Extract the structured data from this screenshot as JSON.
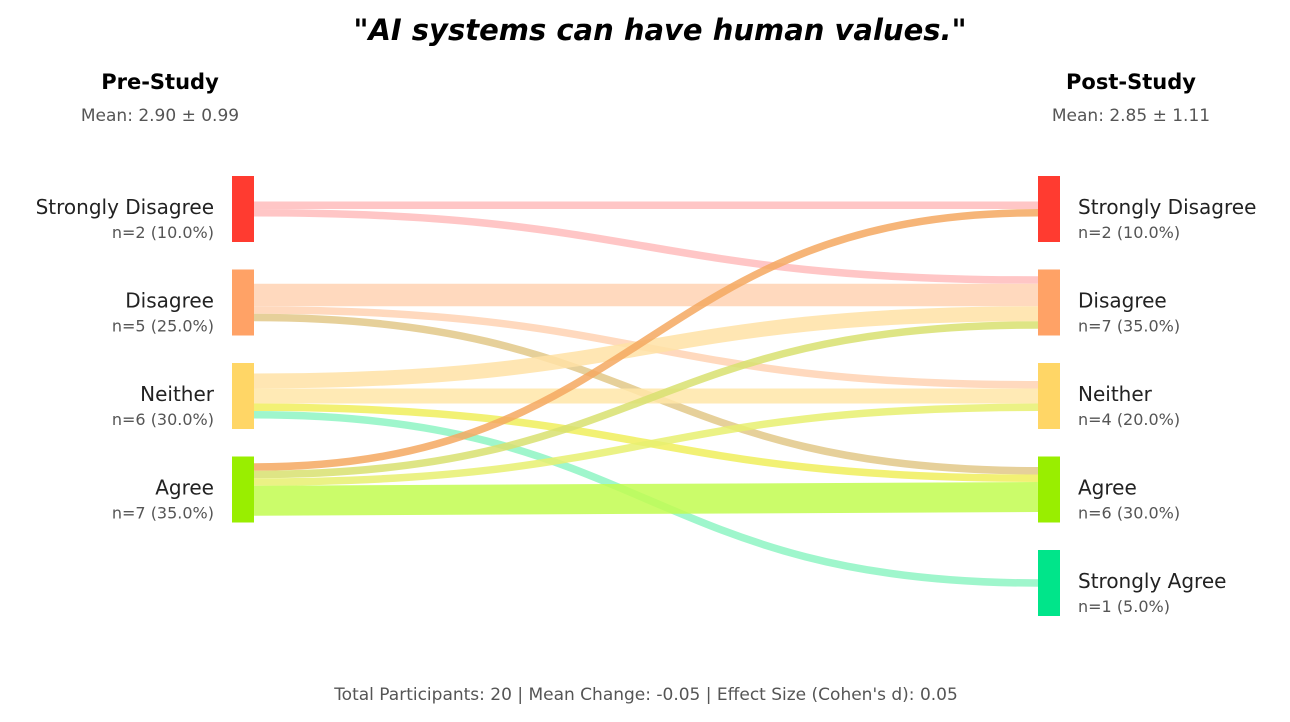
{
  "chart_data": {
    "type": "sankey",
    "title": "\"AI systems can have human values.\"",
    "pre": {
      "header": "Pre-Study",
      "mean_label": "Mean: 2.90 ± 0.99",
      "nodes": [
        {
          "label": "Strongly Disagree",
          "n_label": "n=2 (10.0%)",
          "count": 2,
          "color": "#ff3b30"
        },
        {
          "label": "Disagree",
          "n_label": "n=5 (25.0%)",
          "count": 5,
          "color": "#ffa266"
        },
        {
          "label": "Neither",
          "n_label": "n=6 (30.0%)",
          "count": 6,
          "color": "#ffd666"
        },
        {
          "label": "Agree",
          "n_label": "n=7 (35.0%)",
          "count": 7,
          "color": "#99ee00"
        }
      ]
    },
    "post": {
      "header": "Post-Study",
      "mean_label": "Mean: 2.85 ± 1.11",
      "nodes": [
        {
          "label": "Strongly Disagree",
          "n_label": "n=2 (10.0%)",
          "count": 2,
          "color": "#ff3b30"
        },
        {
          "label": "Disagree",
          "n_label": "n=7 (35.0%)",
          "count": 7,
          "color": "#ffa266"
        },
        {
          "label": "Neither",
          "n_label": "n=4 (20.0%)",
          "count": 4,
          "color": "#ffd666"
        },
        {
          "label": "Agree",
          "n_label": "n=6 (30.0%)",
          "count": 6,
          "color": "#99ee00"
        },
        {
          "label": "Strongly Agree",
          "n_label": "n=1 (5.0%)",
          "count": 1,
          "color": "#00e58a"
        }
      ]
    },
    "flows": [
      {
        "from": "Strongly Disagree",
        "to": "Strongly Disagree",
        "value": 1,
        "color": "#ffbcbc"
      },
      {
        "from": "Strongly Disagree",
        "to": "Disagree",
        "value": 1,
        "color": "#ffbcbc"
      },
      {
        "from": "Disagree",
        "to": "Disagree",
        "value": 3,
        "color": "#ffd2b3"
      },
      {
        "from": "Disagree",
        "to": "Neither",
        "value": 1,
        "color": "#ffd2b3"
      },
      {
        "from": "Disagree",
        "to": "Agree",
        "value": 1,
        "color": "#e2c888"
      },
      {
        "from": "Neither",
        "to": "Disagree",
        "value": 2,
        "color": "#ffe2a6"
      },
      {
        "from": "Neither",
        "to": "Neither",
        "value": 2,
        "color": "#ffe6a8"
      },
      {
        "from": "Neither",
        "to": "Agree",
        "value": 1,
        "color": "#f0ee5c"
      },
      {
        "from": "Neither",
        "to": "Strongly Agree",
        "value": 1,
        "color": "#8ef5c3"
      },
      {
        "from": "Agree",
        "to": "Strongly Disagree",
        "value": 1,
        "color": "#f4a860"
      },
      {
        "from": "Agree",
        "to": "Disagree",
        "value": 1,
        "color": "#d8e070"
      },
      {
        "from": "Agree",
        "to": "Neither",
        "value": 1,
        "color": "#e8f070"
      },
      {
        "from": "Agree",
        "to": "Agree",
        "value": 4,
        "color": "#c2fb50"
      }
    ],
    "footer": "Total Participants: 20 | Mean Change: -0.05 | Effect Size (Cohen's d): 0.05"
  }
}
